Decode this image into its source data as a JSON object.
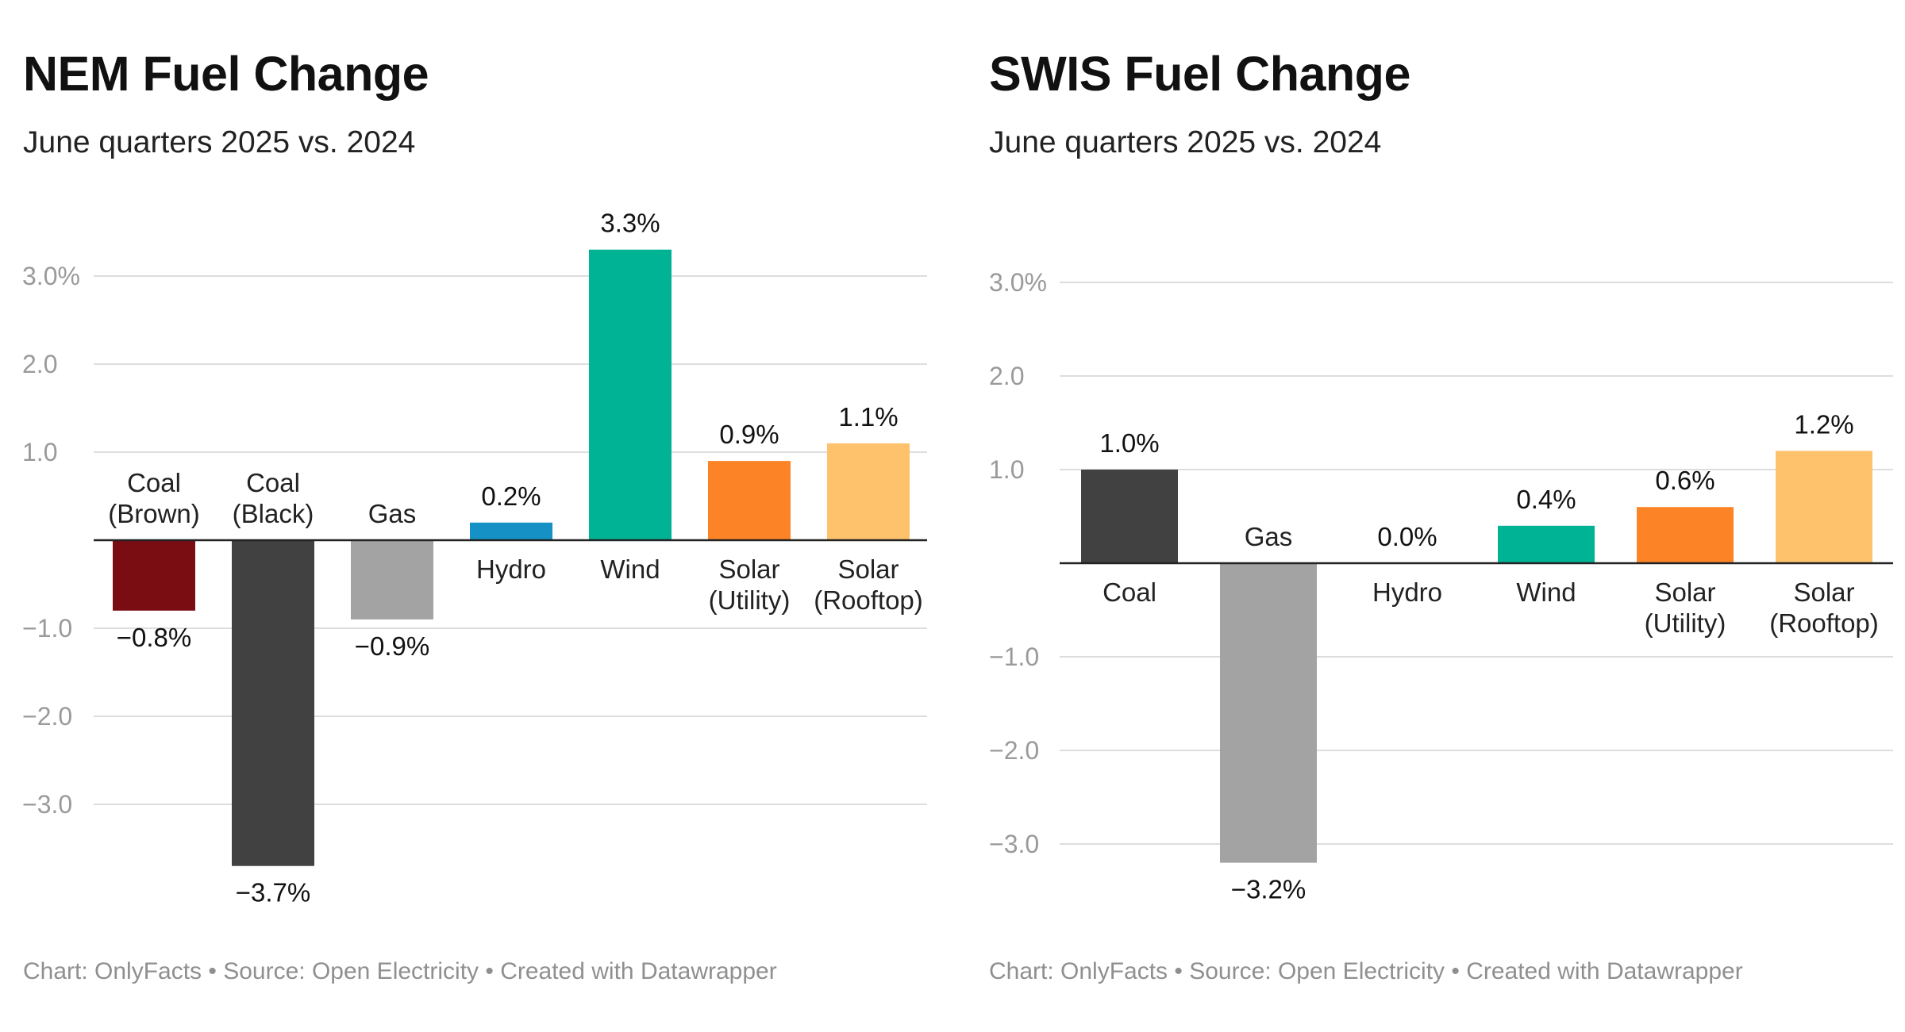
{
  "chart_data": [
    {
      "type": "bar",
      "title": "NEM Fuel Change",
      "subtitle": "June quarters 2025 vs. 2024",
      "footer": "Chart: OnlyFacts • Source: Open Electricity • Created with Datawrapper",
      "categories": [
        [
          "Coal",
          "(Brown)"
        ],
        [
          "Coal",
          "(Black)"
        ],
        [
          "Gas"
        ],
        [
          "Hydro"
        ],
        [
          "Wind"
        ],
        [
          "Solar",
          "(Utility)"
        ],
        [
          "Solar",
          "(Rooftop)"
        ]
      ],
      "values": [
        -0.8,
        -3.7,
        -0.9,
        0.2,
        3.3,
        0.9,
        1.1
      ],
      "value_labels": [
        "−0.8%",
        "−3.7%",
        "−0.9%",
        "0.2%",
        "3.3%",
        "0.9%",
        "1.1%"
      ],
      "colors": [
        "#7a0d12",
        "#414141",
        "#a3a3a3",
        "#1591c6",
        "#00b394",
        "#fd8327",
        "#fec26c"
      ],
      "yticks": [
        3,
        2,
        1,
        -1,
        -2,
        -3
      ],
      "ytick_labels": [
        "3.0%",
        "2.0",
        "1.0",
        "−1.0",
        "−2.0",
        "−3.0"
      ],
      "ylim": [
        -4.2,
        3.6
      ],
      "grid": true,
      "xlabel": "",
      "ylabel": ""
    },
    {
      "type": "bar",
      "title": "SWIS Fuel Change",
      "subtitle": "June quarters 2025 vs. 2024",
      "footer": "Chart: OnlyFacts • Source: Open Electricity • Created with Datawrapper",
      "categories": [
        [
          "Coal"
        ],
        [
          "Gas"
        ],
        [
          "Hydro"
        ],
        [
          "Wind"
        ],
        [
          "Solar",
          "(Utility)"
        ],
        [
          "Solar",
          "(Rooftop)"
        ]
      ],
      "values": [
        1.0,
        -3.2,
        0.0,
        0.4,
        0.6,
        1.2
      ],
      "value_labels": [
        "1.0%",
        "−3.2%",
        "0.0%",
        "0.4%",
        "0.6%",
        "1.2%"
      ],
      "colors": [
        "#414141",
        "#a3a3a3",
        "#1591c6",
        "#00b394",
        "#fd8327",
        "#fec26c"
      ],
      "yticks": [
        3,
        2,
        1,
        -1,
        -2,
        -3
      ],
      "ytick_labels": [
        "3.0%",
        "2.0",
        "1.0",
        "−1.0",
        "−2.0",
        "−3.0"
      ],
      "ylim": [
        -3.9,
        3.6
      ],
      "grid": true,
      "xlabel": "",
      "ylabel": ""
    }
  ]
}
